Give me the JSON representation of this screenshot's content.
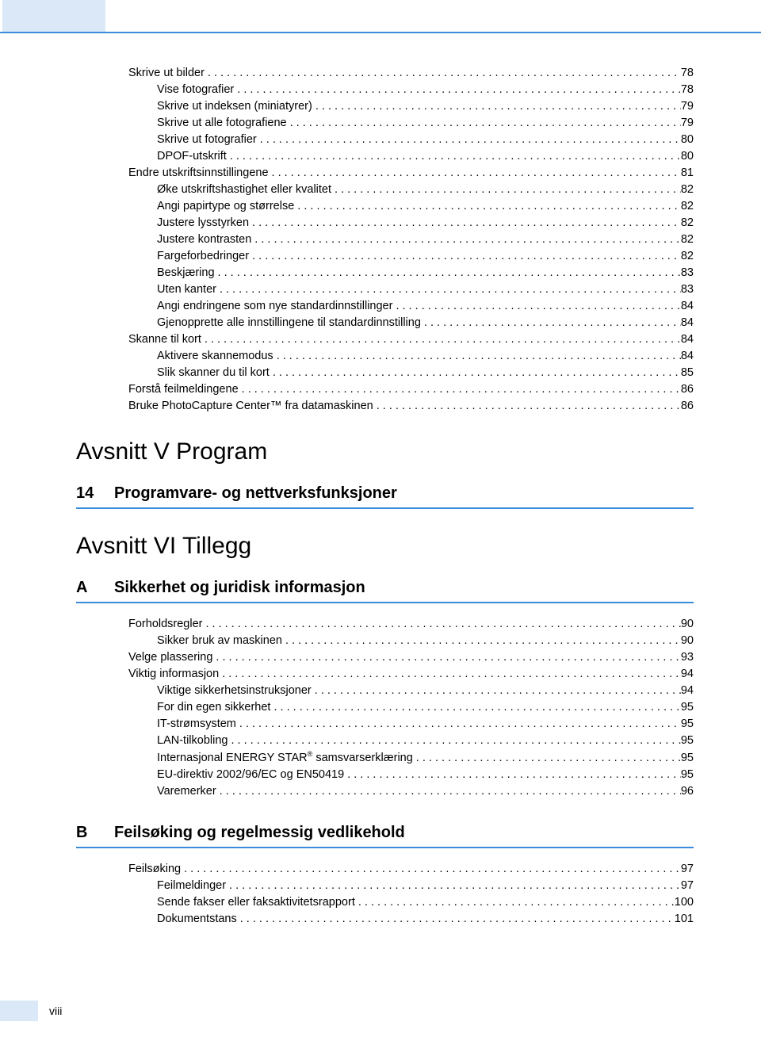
{
  "colors": {
    "rule": "#3a8bd9",
    "header_block_bg": "#dbe8f8",
    "footer_tab_bg": "#dbe8f8",
    "text": "#000000",
    "page_bg": "#ffffff"
  },
  "typography": {
    "body_font": "Arial, Helvetica, sans-serif",
    "body_size_pt": 11,
    "section_title_size_pt": 22,
    "chapter_title_size_pt": 15
  },
  "folio": "viii",
  "blocks": [
    {
      "type": "toc",
      "entries": [
        {
          "indent": 1,
          "label": "Skrive ut bilder",
          "page": "78"
        },
        {
          "indent": 2,
          "label": "Vise fotografier",
          "page": "78"
        },
        {
          "indent": 2,
          "label": "Skrive ut indeksen (miniatyrer)",
          "page": "79"
        },
        {
          "indent": 2,
          "label": "Skrive ut alle fotografiene",
          "page": "79"
        },
        {
          "indent": 2,
          "label": "Skrive ut fotografier",
          "page": "80"
        },
        {
          "indent": 2,
          "label": "DPOF-utskrift",
          "page": "80"
        },
        {
          "indent": 1,
          "label": "Endre utskriftsinnstillingene",
          "page": "81"
        },
        {
          "indent": 2,
          "label": "Øke utskriftshastighet eller kvalitet",
          "page": "82"
        },
        {
          "indent": 2,
          "label": "Angi papirtype og størrelse",
          "page": "82"
        },
        {
          "indent": 2,
          "label": "Justere lysstyrken",
          "page": "82"
        },
        {
          "indent": 2,
          "label": "Justere kontrasten",
          "page": "82"
        },
        {
          "indent": 2,
          "label": "Fargeforbedringer",
          "page": "82"
        },
        {
          "indent": 2,
          "label": "Beskjæring",
          "page": "83"
        },
        {
          "indent": 2,
          "label": "Uten kanter",
          "page": "83"
        },
        {
          "indent": 2,
          "label": "Angi endringene som nye standardinnstillinger",
          "page": "84"
        },
        {
          "indent": 2,
          "label": "Gjenopprette alle innstillingene til standardinnstilling",
          "page": "84"
        },
        {
          "indent": 1,
          "label": "Skanne til kort",
          "page": "84"
        },
        {
          "indent": 2,
          "label": "Aktivere skannemodus",
          "page": "84"
        },
        {
          "indent": 2,
          "label": "Slik skanner du til kort",
          "page": "85"
        },
        {
          "indent": 1,
          "label": "Forstå feilmeldingene",
          "page": "86"
        },
        {
          "indent": 1,
          "label": "Bruke PhotoCapture Center™ fra datamaskinen",
          "page": "86"
        }
      ]
    },
    {
      "type": "section",
      "title": "Avsnitt V   Program"
    },
    {
      "type": "chapter",
      "num": "14",
      "title": "Programvare- og nettverksfunksjoner"
    },
    {
      "type": "section",
      "title": "Avsnitt VI  Tillegg"
    },
    {
      "type": "chapter",
      "num": "A",
      "title": "Sikkerhet og juridisk informasjon"
    },
    {
      "type": "toc",
      "entries": [
        {
          "indent": 1,
          "label": "Forholdsregler",
          "page": "90"
        },
        {
          "indent": 2,
          "label": "Sikker bruk av maskinen",
          "page": "90"
        },
        {
          "indent": 1,
          "label": "Velge plassering",
          "page": "93"
        },
        {
          "indent": 1,
          "label": "Viktig informasjon",
          "page": "94"
        },
        {
          "indent": 2,
          "label": "Viktige sikkerhetsinstruksjoner",
          "page": "94"
        },
        {
          "indent": 2,
          "label": "For din egen sikkerhet",
          "page": "95"
        },
        {
          "indent": 2,
          "label": "IT-strømsystem",
          "page": "95"
        },
        {
          "indent": 2,
          "label": "LAN-tilkobling",
          "page": "95"
        },
        {
          "indent": 2,
          "label": "Internasjonal ENERGY STAR<sup class=\"reg\">®</sup> samsvarserklæring",
          "page": "95",
          "html": true
        },
        {
          "indent": 2,
          "label": "EU-direktiv 2002/96/EC og EN50419",
          "page": "95"
        },
        {
          "indent": 2,
          "label": "Varemerker",
          "page": "96"
        }
      ]
    },
    {
      "type": "chapter",
      "num": "B",
      "title": "Feilsøking og regelmessig vedlikehold"
    },
    {
      "type": "toc",
      "entries": [
        {
          "indent": 1,
          "label": "Feilsøking",
          "page": "97"
        },
        {
          "indent": 2,
          "label": "Feilmeldinger",
          "page": "97"
        },
        {
          "indent": 2,
          "label": "Sende fakser eller faksaktivitetsrapport",
          "page": "100"
        },
        {
          "indent": 2,
          "label": "Dokumentstans",
          "page": "101"
        }
      ]
    }
  ]
}
